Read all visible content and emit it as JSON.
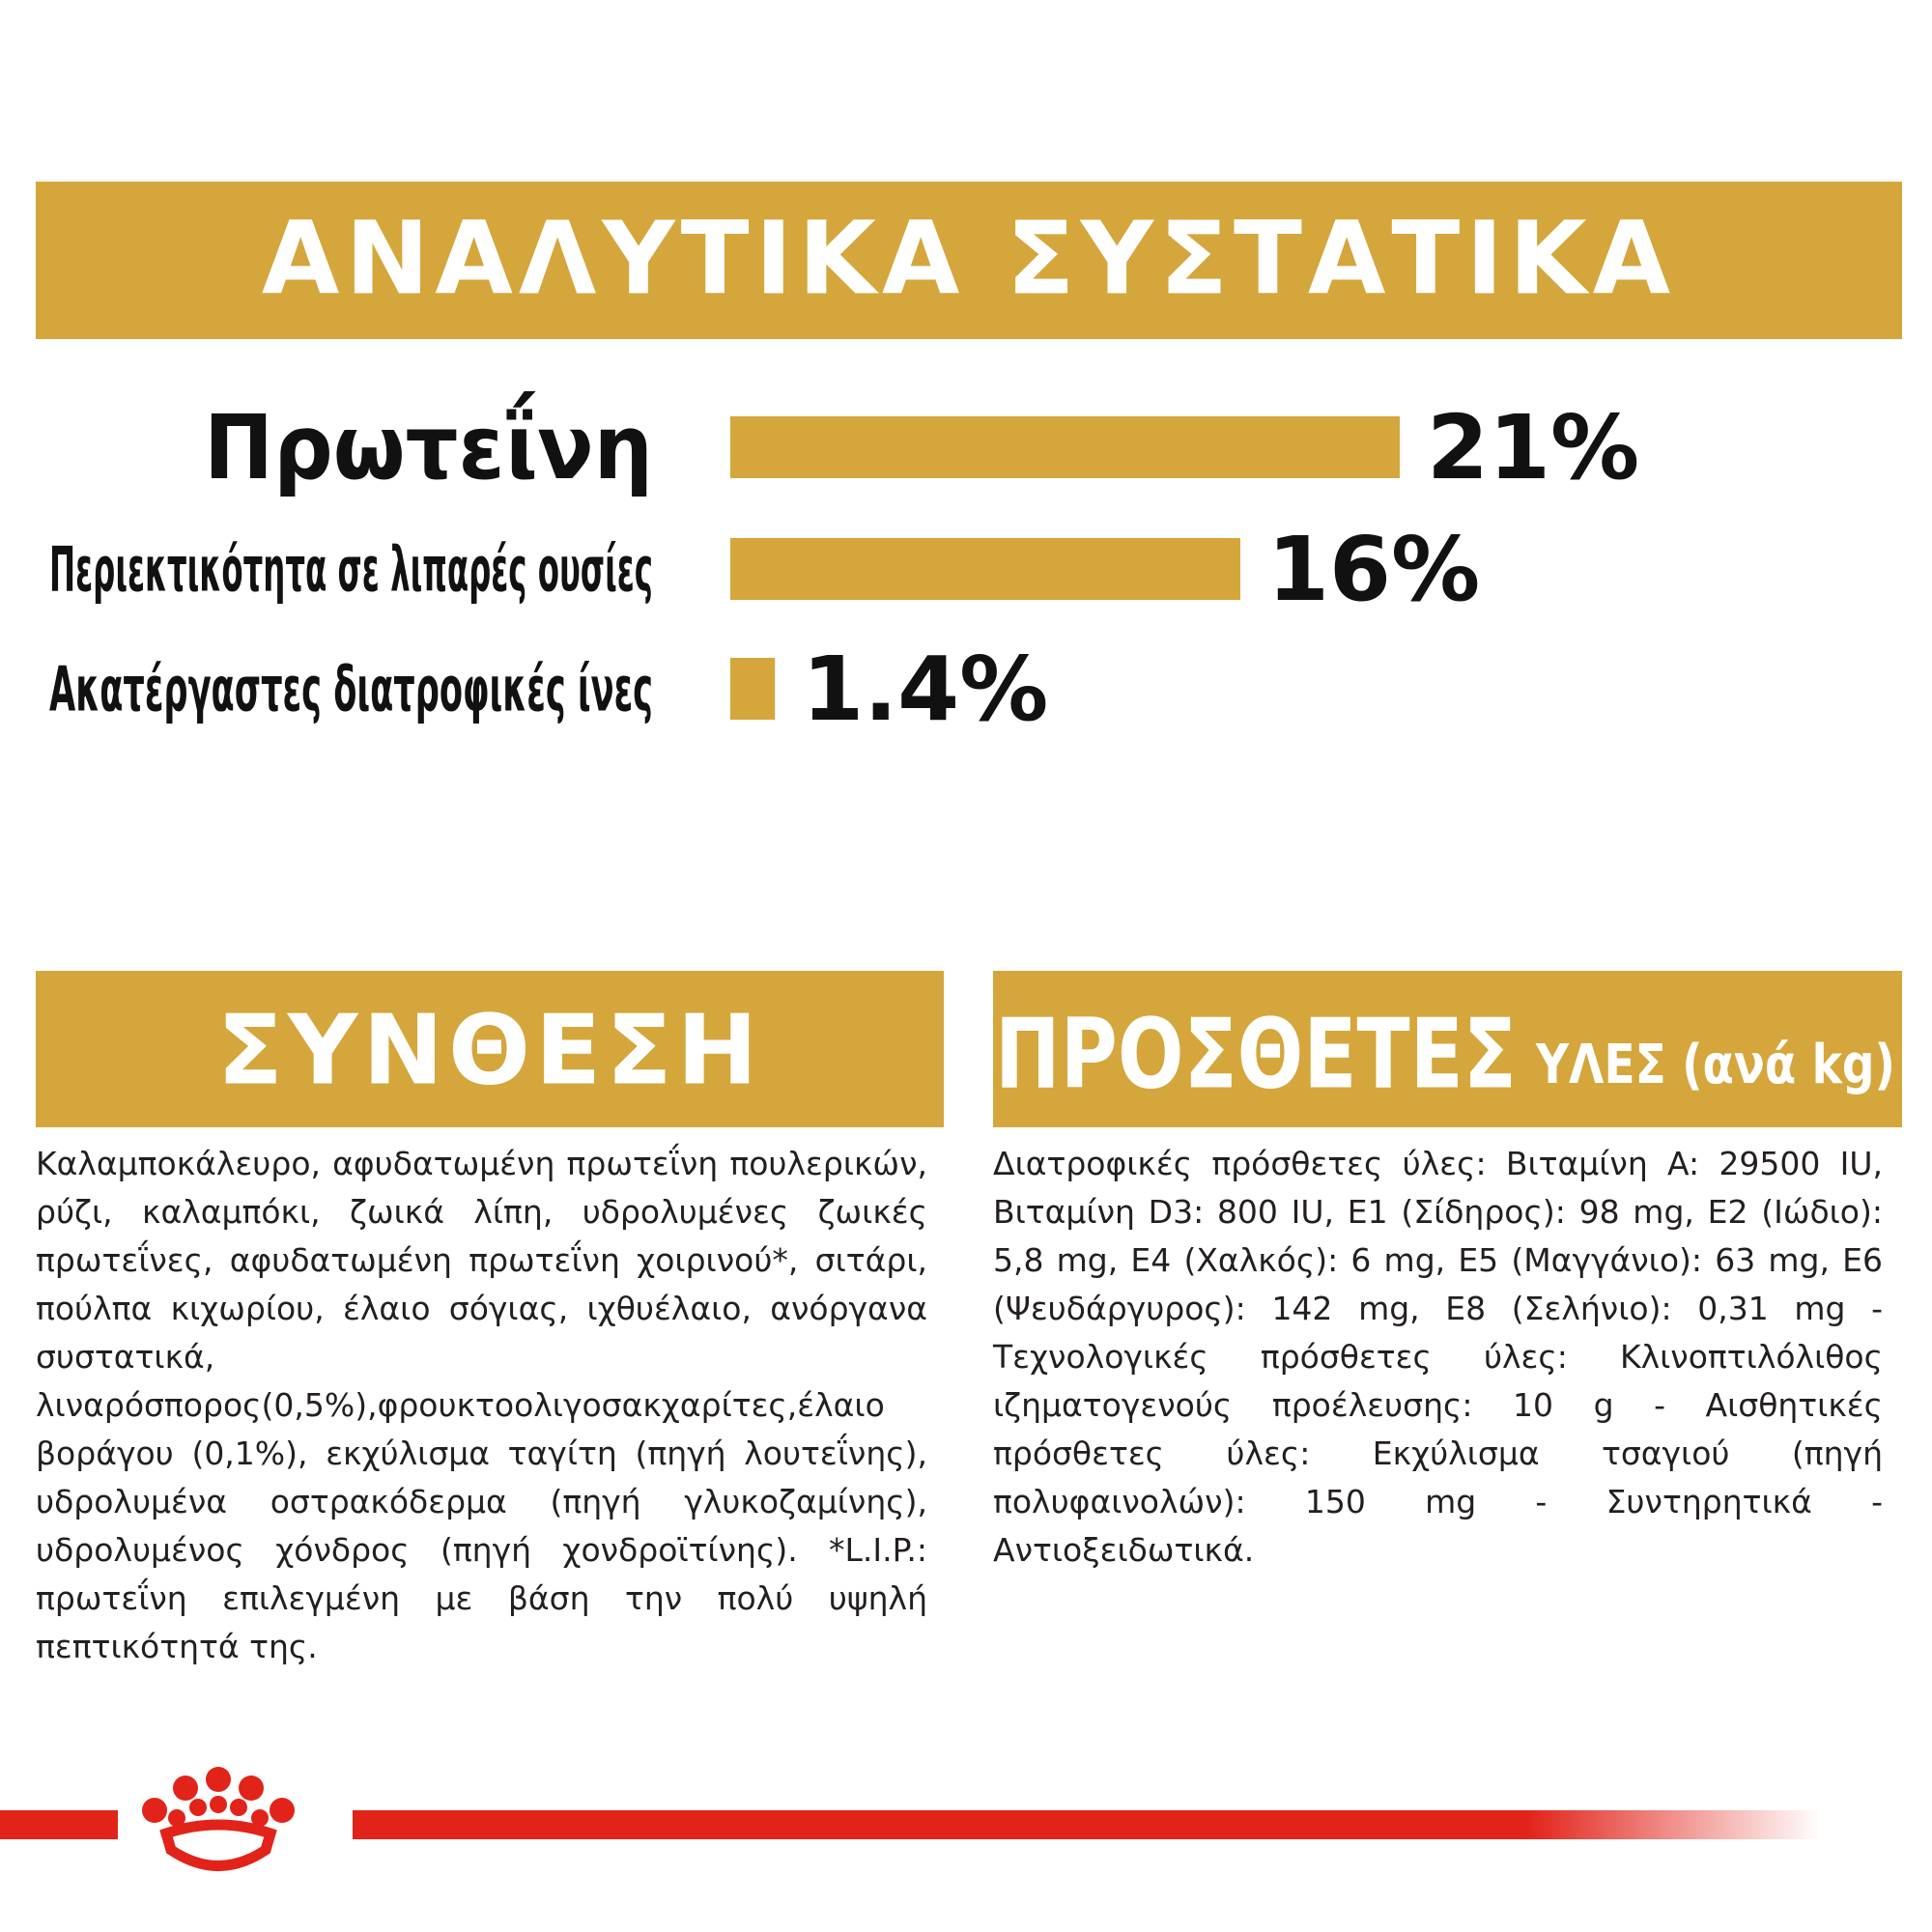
{
  "chart_data": {
    "type": "bar",
    "title": "ΑΝΑΛΥΤΙΚΑ ΣΥΣΤΑΤΙΚΑ",
    "categories": [
      "Πρωτεΐνη",
      "Περιεκτικότητα σε λιπαρές ουσίες",
      "Ακατέργαστες διατροφικές ίνες"
    ],
    "values": [
      21,
      16,
      1.4
    ],
    "value_labels": [
      "21%",
      "16%",
      "1.4%"
    ],
    "color": "#d5a63b"
  },
  "composition": {
    "title": "ΣΥΝΘΕΣΗ",
    "text": "Καλαμποκάλευρο, αφυδατωμένη πρωτεΐνη πουλερικών, ρύζι, καλαμπόκι, ζωικά λίπη, υδρολυμένες ζωικές πρωτεΐνες, αφυδατωμένη πρωτεΐνη χοιρινού*, σιτάρι, πούλπα κιχωρίου, έλαιο σόγιας, ιχθυέλαιο, ανόργανα συστατικά, λιναρόσπορος(0,5%),φρουκτοολιγοσακχαρίτες,έλαιο βοράγου (0,1%), εκχύλισμα ταγίτη (πηγή λουτεΐνης), υδρολυμένα οστρακόδερμα (πηγή γλυκοζαμίνης), υδρολυμένος χόνδρος (πηγή χονδροϊτίνης). *L.I.P.: πρωτεΐνη επιλεγμένη με βάση την πολύ υψηλή πεπτικότητά της."
  },
  "additives": {
    "title": "ΠΡΟΣΘΕΤΕΣ",
    "subtitle": "ΥΛΕΣ (ανά kg)",
    "text": "Διατροφικές πρόσθετες ύλες: Βιταμίνη A: 29500 IU, Βιταμίνη D3: 800 IU, E1 (Σίδηρος): 98 mg, E2 (Ιώδιο): 5,8 mg, E4 (Χαλκός): 6 mg, E5 (Μαγγάνιο): 63 mg, E6 (Ψευδάργυρος): 142 mg, E8 (Σελήνιο): 0,31 mg - Τεχνολογικές πρόσθετες ύλες: Κλινοπτιλόλιθος ιζηματογενούς προέλευσης: 10 g - Αισθητικές πρόσθετες ύλες: Εκχύλισμα τσαγιού (πηγή πολυφαινολών): 150 mg - Συντηρητικά - Αντιοξειδωτικά."
  }
}
